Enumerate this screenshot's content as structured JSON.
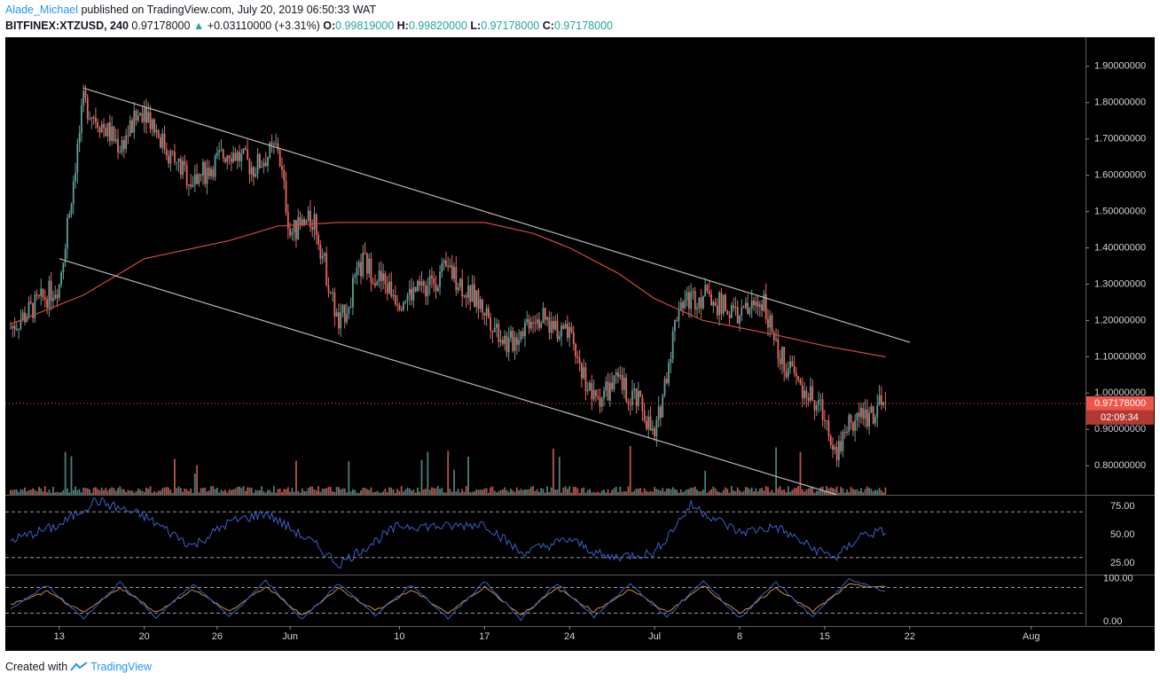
{
  "header": {
    "author": "Alade_Michael",
    "published_text": "published on TradingView.com, July 20, 2019 06:50:33 WAT",
    "symbol": "BITFINEX:XTZUSD, 240",
    "last": "0.97178000",
    "change_arrow": "▲",
    "change": "+0.03110000 (+3.31%)",
    "o_label": "O:",
    "o_value": "0.99819000",
    "h_label": "H:",
    "h_value": "0.99820000",
    "l_label": "L:",
    "l_value": "0.97178000",
    "c_label": "C:",
    "c_value": "0.97178000"
  },
  "price_axis": {
    "ticks": [
      "1.90000000",
      "1.80000000",
      "1.70000000",
      "1.60000000",
      "1.50000000",
      "1.40000000",
      "1.30000000",
      "1.20000000",
      "1.10000000",
      "1.00000000",
      "0.90000000",
      "0.80000000"
    ],
    "current_price": "0.97178000",
    "countdown": "02:09:34"
  },
  "rsi_axis": {
    "ticks": [
      "75.00",
      "50.00",
      "25.00"
    ]
  },
  "stoch_axis": {
    "ticks": [
      "100.00",
      "0.00"
    ]
  },
  "time_axis": {
    "labels": [
      "13",
      "20",
      "26",
      "Jun",
      "10",
      "17",
      "24",
      "Jul",
      "8",
      "15",
      "22",
      "Aug"
    ]
  },
  "footer": {
    "created_with": "Created with",
    "brand": "TradingView"
  },
  "colors": {
    "background": "#000000",
    "up_candle": "#5f9f99",
    "down_candle": "#e8685e",
    "ma_line": "#d14b43",
    "channel_line": "#b8b8b8",
    "rsi_line": "#3d5fc9",
    "stoch_k": "#3d5fc9",
    "stoch_d": "#cf8a3c",
    "price_label_bg": "#f0554a"
  },
  "chart_data": [
    {
      "type": "candlestick",
      "title": "",
      "symbol": "BITFINEX:XTZUSD",
      "interval": "240",
      "ylim": [
        0.72,
        1.98
      ],
      "y_scale": "linear",
      "grid": false,
      "x": [
        "2019-05-09",
        "2019-05-13",
        "2019-05-15",
        "2019-05-18",
        "2019-05-20",
        "2019-05-22",
        "2019-05-24",
        "2019-05-27",
        "2019-05-29",
        "2019-05-31",
        "2019-06-01",
        "2019-06-03",
        "2019-06-05",
        "2019-06-07",
        "2019-06-10",
        "2019-06-12",
        "2019-06-14",
        "2019-06-17",
        "2019-06-19",
        "2019-06-21",
        "2019-06-24",
        "2019-06-26",
        "2019-06-28",
        "2019-06-30",
        "2019-07-01",
        "2019-07-03",
        "2019-07-05",
        "2019-07-08",
        "2019-07-10",
        "2019-07-11",
        "2019-07-13",
        "2019-07-15",
        "2019-07-16",
        "2019-07-17",
        "2019-07-19",
        "2019-07-20"
      ],
      "close": [
        1.18,
        1.3,
        1.8,
        1.68,
        1.79,
        1.66,
        1.58,
        1.67,
        1.62,
        1.68,
        1.44,
        1.48,
        1.18,
        1.36,
        1.26,
        1.29,
        1.34,
        1.23,
        1.13,
        1.22,
        1.15,
        0.98,
        1.03,
        0.96,
        0.87,
        1.25,
        1.27,
        1.21,
        1.26,
        1.12,
        1.02,
        0.94,
        0.84,
        0.92,
        0.95,
        0.97178
      ],
      "moving_average": {
        "x": [
          "2019-05-09",
          "2019-05-15",
          "2019-05-20",
          "2019-05-27",
          "2019-05-31",
          "2019-06-05",
          "2019-06-10",
          "2019-06-17",
          "2019-06-21",
          "2019-06-24",
          "2019-06-28",
          "2019-07-01",
          "2019-07-05",
          "2019-07-08",
          "2019-07-11",
          "2019-07-15",
          "2019-07-20"
        ],
        "values": [
          1.19,
          1.27,
          1.37,
          1.42,
          1.46,
          1.47,
          1.47,
          1.47,
          1.44,
          1.4,
          1.33,
          1.26,
          1.2,
          1.18,
          1.16,
          1.13,
          1.1
        ]
      },
      "trend_lines": [
        {
          "points": [
            [
              "2019-05-15",
              1.84
            ],
            [
              "2019-07-22",
              1.14
            ]
          ]
        },
        {
          "points": [
            [
              "2019-05-13",
              1.37
            ],
            [
              "2019-07-16",
              0.72
            ]
          ]
        }
      ],
      "volume": "bars with no scale printed",
      "current_price": 0.97178,
      "countdown": "02:09:34"
    },
    {
      "type": "line",
      "title": "",
      "ylim": [
        15,
        85
      ],
      "levels": [
        70,
        30
      ],
      "x": [
        "2019-05-09",
        "2019-05-13",
        "2019-05-16",
        "2019-05-20",
        "2019-05-24",
        "2019-05-27",
        "2019-05-30",
        "2019-06-03",
        "2019-06-05",
        "2019-06-10",
        "2019-06-14",
        "2019-06-17",
        "2019-06-20",
        "2019-06-24",
        "2019-06-27",
        "2019-07-01",
        "2019-07-04",
        "2019-07-08",
        "2019-07-11",
        "2019-07-14",
        "2019-07-16",
        "2019-07-18",
        "2019-07-20"
      ],
      "values": [
        45,
        58,
        80,
        66,
        40,
        61,
        69,
        42,
        24,
        58,
        57,
        60,
        34,
        46,
        30,
        34,
        76,
        52,
        57,
        38,
        30,
        50,
        53
      ]
    },
    {
      "type": "line",
      "title": "",
      "ylim": [
        -10,
        110
      ],
      "levels": [
        80,
        20
      ],
      "series": [
        {
          "x": [
            "2019-05-09",
            "2019-05-12",
            "2019-05-15",
            "2019-05-18",
            "2019-05-21",
            "2019-05-24",
            "2019-05-27",
            "2019-05-30",
            "2019-06-02",
            "2019-06-05",
            "2019-06-08",
            "2019-06-11",
            "2019-06-14",
            "2019-06-17",
            "2019-06-20",
            "2019-06-23",
            "2019-06-26",
            "2019-06-29",
            "2019-07-02",
            "2019-07-05",
            "2019-07-08",
            "2019-07-11",
            "2019-07-14",
            "2019-07-17",
            "2019-07-20"
          ],
          "values": [
            30,
            85,
            8,
            92,
            10,
            88,
            12,
            95,
            5,
            90,
            15,
            86,
            8,
            94,
            6,
            90,
            12,
            88,
            10,
            96,
            8,
            92,
            12,
            98,
            70
          ]
        },
        {
          "x": [
            "2019-05-09",
            "2019-05-12",
            "2019-05-15",
            "2019-05-18",
            "2019-05-21",
            "2019-05-24",
            "2019-05-27",
            "2019-05-30",
            "2019-06-02",
            "2019-06-05",
            "2019-06-08",
            "2019-06-11",
            "2019-06-14",
            "2019-06-17",
            "2019-06-20",
            "2019-06-23",
            "2019-06-26",
            "2019-06-29",
            "2019-07-02",
            "2019-07-05",
            "2019-07-08",
            "2019-07-11",
            "2019-07-14",
            "2019-07-17",
            "2019-07-20"
          ],
          "values": [
            40,
            70,
            20,
            80,
            22,
            76,
            24,
            82,
            14,
            78,
            26,
            74,
            20,
            82,
            16,
            78,
            24,
            76,
            22,
            84,
            18,
            80,
            24,
            86,
            80
          ]
        }
      ]
    }
  ]
}
